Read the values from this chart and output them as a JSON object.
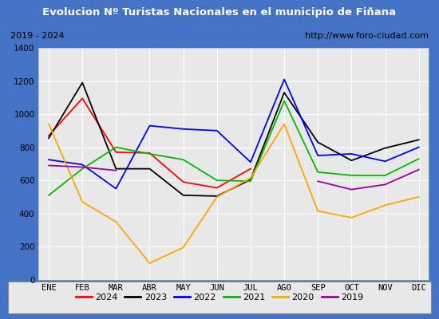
{
  "title": "Evolucion Nº Turistas Nacionales en el municipio de Fiñana",
  "subtitle_left": "2019 - 2024",
  "subtitle_right": "http://www.foro-ciudad.com",
  "months": [
    "ENE",
    "FEB",
    "MAR",
    "ABR",
    "MAY",
    "JUN",
    "JUL",
    "AGO",
    "SEP",
    "OCT",
    "NOV",
    "DIC"
  ],
  "series": {
    "2024": [
      870,
      1095,
      770,
      765,
      590,
      555,
      670,
      null,
      null,
      null,
      null,
      null
    ],
    "2023": [
      855,
      1190,
      670,
      670,
      510,
      505,
      605,
      1130,
      830,
      720,
      795,
      845
    ],
    "2022": [
      725,
      695,
      550,
      930,
      910,
      900,
      710,
      1210,
      750,
      760,
      715,
      800
    ],
    "2021": [
      510,
      670,
      800,
      760,
      725,
      600,
      595,
      1080,
      650,
      630,
      630,
      730
    ],
    "2020": [
      940,
      470,
      350,
      100,
      195,
      500,
      615,
      940,
      415,
      375,
      450,
      500
    ],
    "2019": [
      690,
      680,
      660,
      null,
      null,
      null,
      null,
      null,
      595,
      545,
      575,
      665
    ]
  },
  "colors": {
    "2024": "#ff0000",
    "2023": "#000000",
    "2022": "#0000ff",
    "2021": "#00bb00",
    "2020": "#ffa500",
    "2019": "#9900aa"
  },
  "ylim": [
    0,
    1400
  ],
  "yticks": [
    0,
    200,
    400,
    600,
    800,
    1000,
    1200,
    1400
  ],
  "title_bg": "#4472c4",
  "title_color": "#ffffff",
  "plot_bg": "#e8e8e8",
  "grid_color": "#ffffff",
  "border_color": "#4472c4",
  "subtitle_bg": "#d8d8d8",
  "legend_bg": "#e8e8e8"
}
